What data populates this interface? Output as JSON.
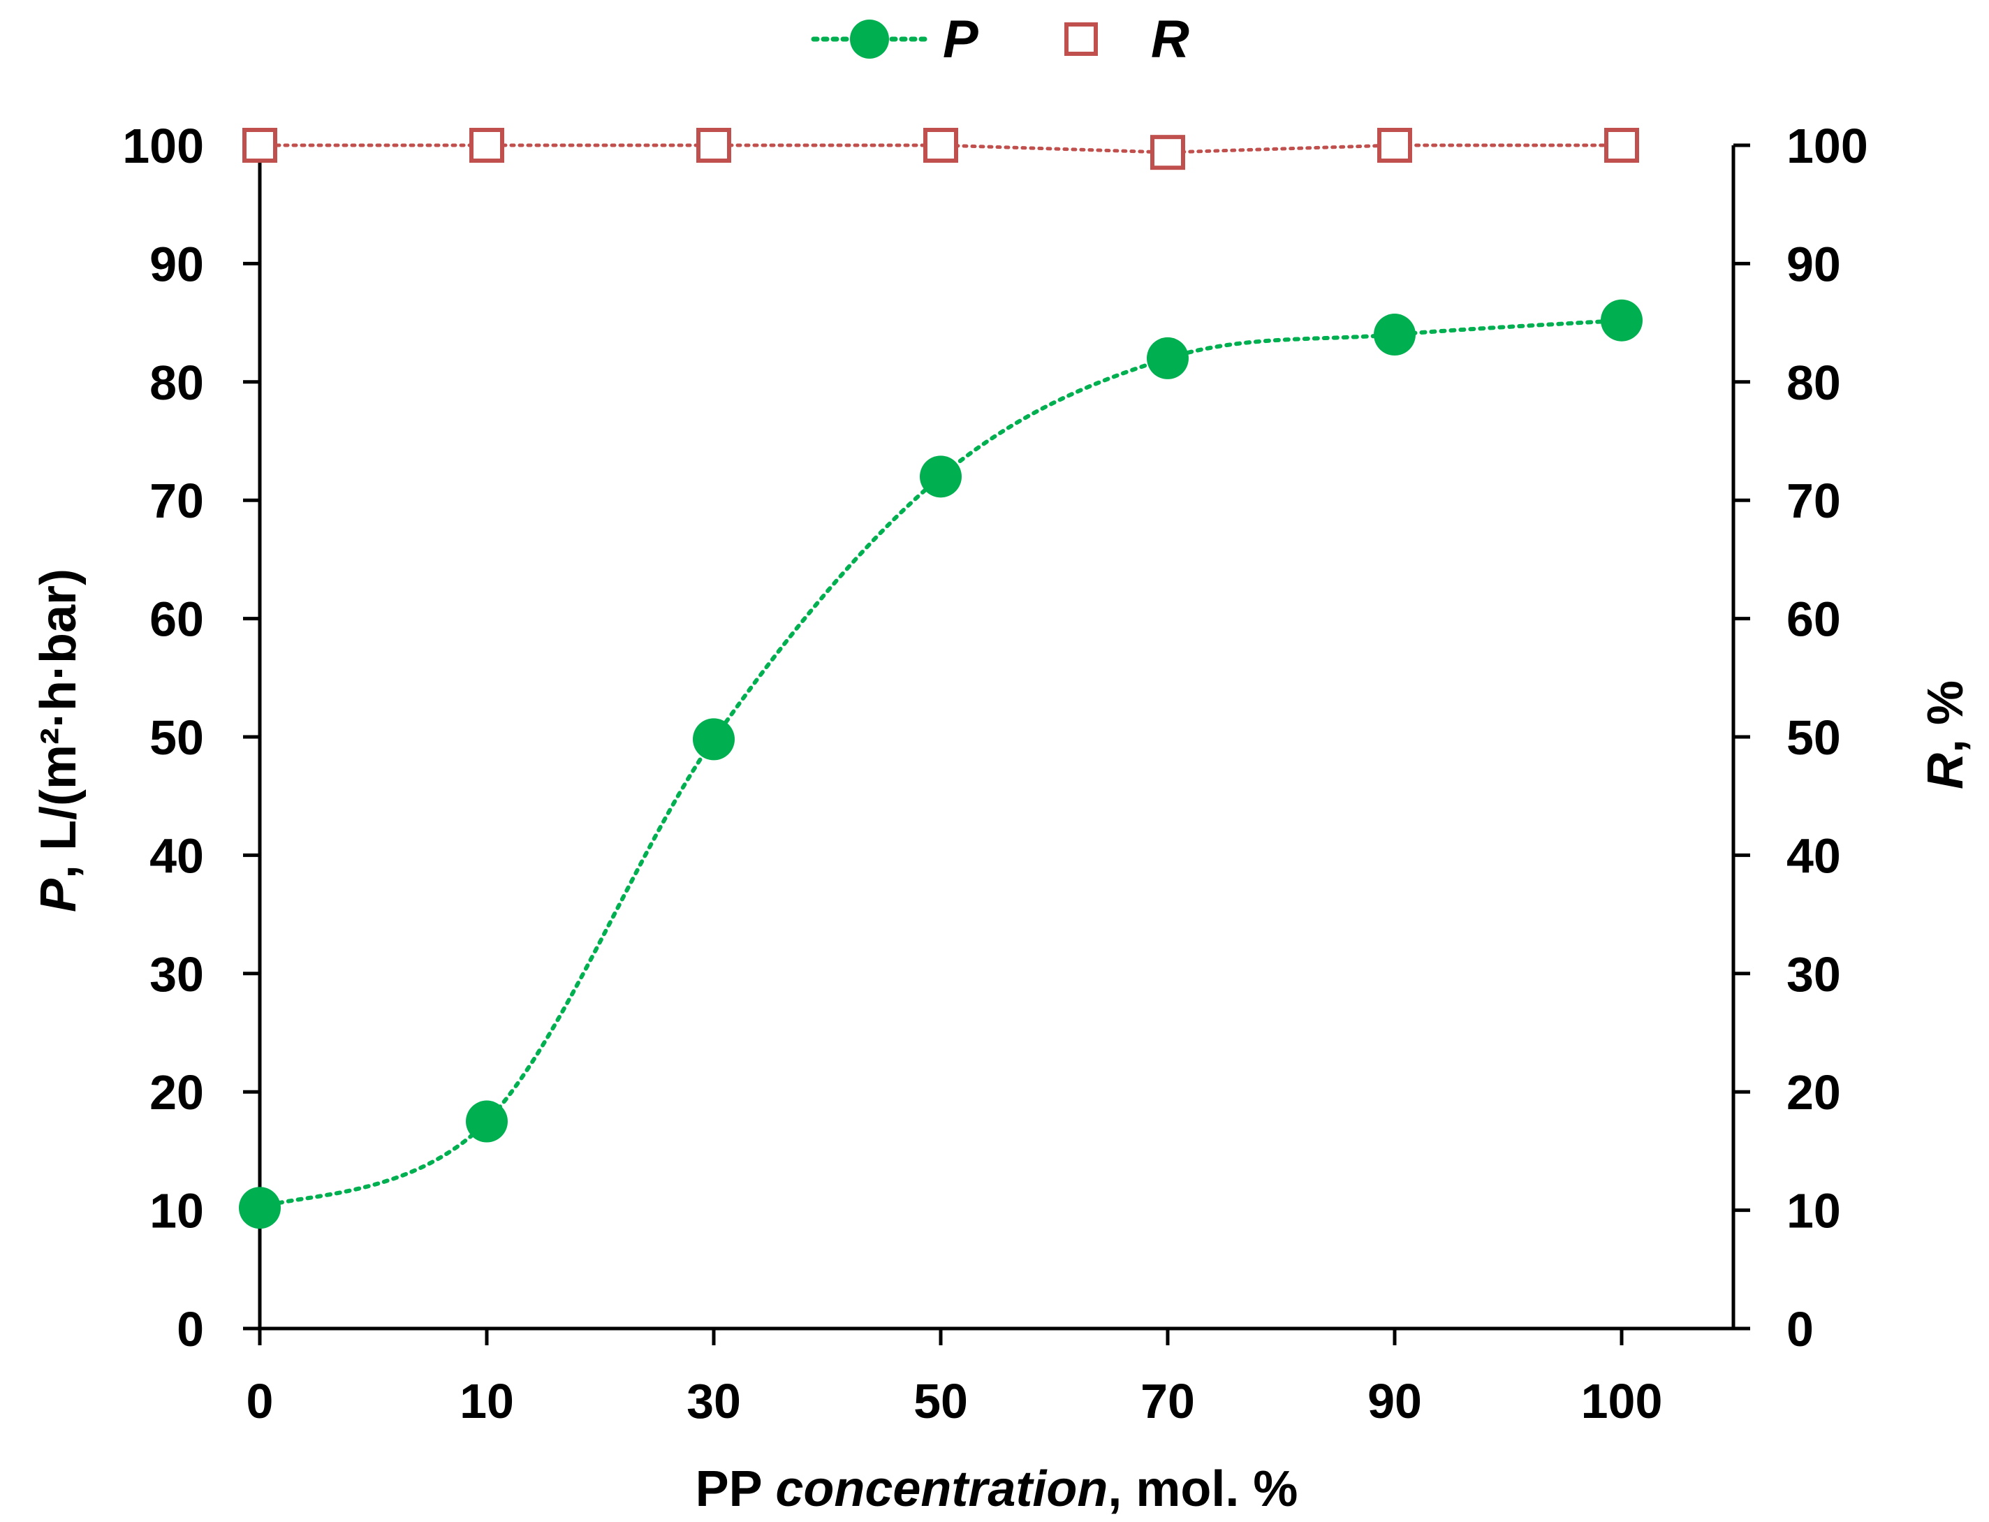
{
  "chart_data": {
    "type": "line",
    "categories": [
      "0",
      "10",
      "30",
      "50",
      "70",
      "90",
      "100"
    ],
    "series": [
      {
        "name": "P",
        "axis": "left",
        "marker": "filled-circle",
        "line_style": "dotted",
        "color": "#00B050",
        "values": [
          10.2,
          17.5,
          49.8,
          72,
          82,
          84,
          85.2
        ]
      },
      {
        "name": "R",
        "axis": "right",
        "marker": "open-square",
        "line_style": "dotted",
        "color": "#C0504D",
        "values": [
          100,
          100,
          100,
          100,
          99.4,
          100,
          100
        ]
      }
    ],
    "xlabel": {
      "prefix": "PP ",
      "italic": "concentration",
      "suffix": ", mol. %"
    },
    "ylabel_left": {
      "italic": "P",
      "rest": ", L/(m²·h·bar)"
    },
    "ylabel_right": {
      "italic": "R",
      "rest": ", %"
    },
    "ylim_left": [
      0,
      100
    ],
    "ylim_right": [
      0,
      100
    ],
    "yticks_left": [
      0,
      10,
      20,
      30,
      40,
      50,
      60,
      70,
      80,
      90,
      100
    ],
    "yticks_right": [
      0,
      10,
      20,
      30,
      40,
      50,
      60,
      70,
      80,
      90,
      100
    ],
    "grid": false,
    "legend_position": "top-center"
  },
  "legend": {
    "p_label": "P",
    "r_label": "R"
  }
}
